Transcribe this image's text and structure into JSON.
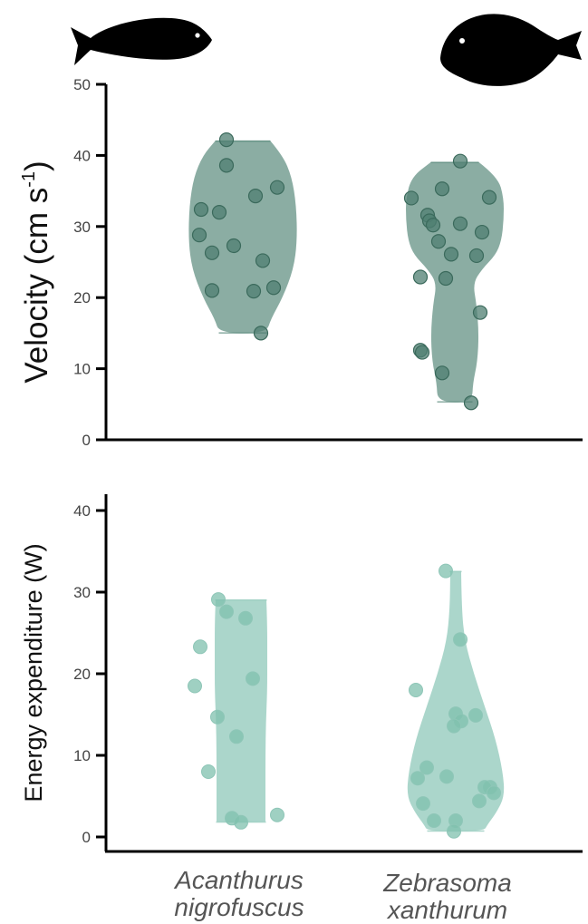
{
  "chart_data": [
    {
      "type": "violin",
      "ylabel": "Velocity (cm s",
      "ylabel_superscript": "-1",
      "ylabel_close": ")",
      "ylim": [
        0,
        50
      ],
      "yticks": [
        0,
        10,
        20,
        30,
        40,
        50
      ],
      "color": "#5e8e80",
      "categories": [
        "Acanthurus nigrofuscus",
        "Zebrasoma xanthurum"
      ],
      "series": [
        {
          "points": [
            42.2,
            38.6,
            35.5,
            34.3,
            32.4,
            32.0,
            28.8,
            27.3,
            26.3,
            25.2,
            21.4,
            21.0,
            20.9,
            15.0
          ]
        },
        {
          "points": [
            39.2,
            35.3,
            34.1,
            34.0,
            31.6,
            30.8,
            30.4,
            30.2,
            29.2,
            27.9,
            26.1,
            25.9,
            22.9,
            22.7,
            17.9,
            12.6,
            12.3,
            9.4,
            5.2
          ]
        }
      ]
    },
    {
      "type": "violin",
      "ylabel": "Energy expenditure (W)",
      "ylim": [
        0,
        42
      ],
      "yticks": [
        0,
        10,
        20,
        30,
        40
      ],
      "color": "#9ccfc2",
      "categories": [
        "Acanthurus nigrofuscus",
        "Zebrasoma xanthurum"
      ],
      "series": [
        {
          "points": [
            29.1,
            27.6,
            26.8,
            23.3,
            19.4,
            18.5,
            14.7,
            12.3,
            8.0,
            2.7,
            2.3,
            1.8
          ]
        },
        {
          "points": [
            32.6,
            24.2,
            18.0,
            15.1,
            14.9,
            14.2,
            13.6,
            8.5,
            7.4,
            7.2,
            6.1,
            6.1,
            5.4,
            4.4,
            4.1,
            2.0,
            2.0,
            0.7
          ]
        }
      ]
    }
  ],
  "x_labels": [
    {
      "line1": "Acanthurus",
      "line2": "nigrofuscus"
    },
    {
      "line1": "Zebrasoma",
      "line2": "xanthurum"
    }
  ],
  "icons": {
    "left_fish": "acanthurus-fish-silhouette-icon",
    "right_fish": "zebrasoma-fish-silhouette-icon"
  }
}
